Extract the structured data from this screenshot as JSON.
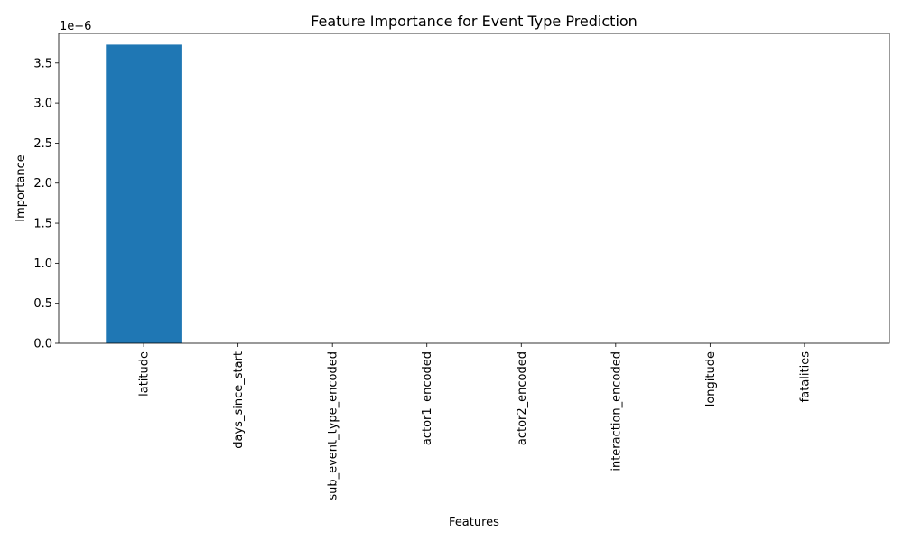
{
  "chart_data": {
    "type": "bar",
    "title": "Feature Importance for Event Type Prediction",
    "xlabel": "Features",
    "ylabel": "Importance",
    "y_offset_text": "1e−6",
    "categories": [
      "latitude",
      "days_since_start",
      "sub_event_type_encoded",
      "actor1_encoded",
      "actor2_encoded",
      "interaction_encoded",
      "longitude",
      "fatalities"
    ],
    "values": [
      3.73,
      0,
      0,
      0,
      0,
      0,
      0,
      0
    ],
    "value_scale": 1e-06,
    "ylim": [
      0,
      3.87
    ],
    "yticks": [
      "0.0",
      "0.5",
      "1.0",
      "1.5",
      "2.0",
      "2.5",
      "3.0",
      "3.5"
    ],
    "bar_color": "#1f77b4",
    "grid": false,
    "legend": "none"
  }
}
